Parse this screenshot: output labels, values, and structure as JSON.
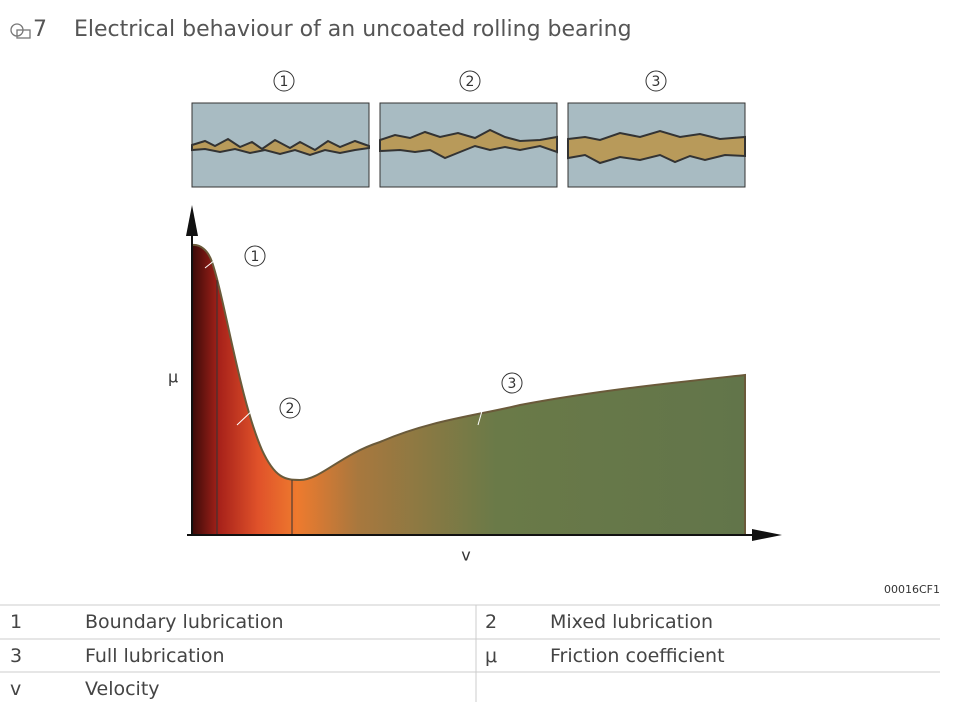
{
  "figure": {
    "number": "7",
    "title": "Electrical behaviour of an uncoated rolling bearing",
    "panel_labels": [
      "1",
      "2",
      "3"
    ],
    "callouts": [
      "1",
      "2",
      "3"
    ],
    "y_axis_label": "μ",
    "x_axis_label": "v",
    "code": "00016CF1"
  },
  "legend": {
    "rows": [
      [
        "1",
        "Boundary lubrication",
        "2",
        "Mixed lubrication"
      ],
      [
        "3",
        "Full lubrication",
        "μ",
        "Friction coefficient"
      ],
      [
        "v",
        "Velocity"
      ]
    ]
  }
}
